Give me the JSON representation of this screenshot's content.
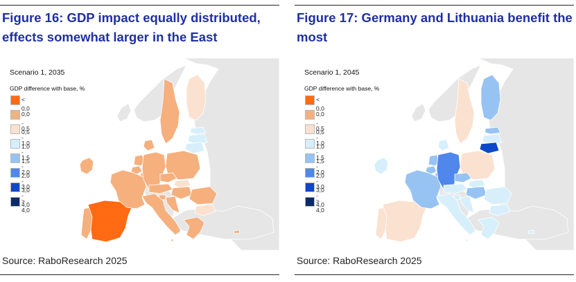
{
  "legend_bins": [
    {
      "label": "< 0,0",
      "color": "#ff6a13"
    },
    {
      "label": "0,0 - 0,5",
      "color": "#f5b07e"
    },
    {
      "label": "0,5 - 1,0",
      "color": "#fbe1cf"
    },
    {
      "label": "1,0 - 1,5",
      "color": "#d6effb"
    },
    {
      "label": "1,5 - 2,0",
      "color": "#97c3f3"
    },
    {
      "label": "2,0 - 3,0",
      "color": "#4f87ea"
    },
    {
      "label": "3,0 - 4,0",
      "color": "#0c48c8"
    },
    {
      "label": "> 4,0",
      "color": "#0b2a6b"
    }
  ],
  "non_eu_color": "#e6e6e6",
  "sea_color": "#ffffff",
  "figures": [
    {
      "title": "Figure 16: GDP impact equally distributed, effects somewhat larger in the East",
      "scenario": "Scenario 1, 2035",
      "legend_title": "GDP difference with base, %",
      "source": "Source: RaboResearch 2025",
      "country_bins": {
        "IE": 1,
        "PT": 1,
        "ES": 0,
        "FR": 1,
        "BE": 1,
        "NL": 1,
        "LU": 1,
        "DE": 1,
        "DK": 1,
        "SE": 1,
        "FI": 2,
        "EE": 3,
        "LV": 3,
        "LT": 3,
        "PL": 1,
        "CZ": 1,
        "SK": 2,
        "AT": 1,
        "HU": 1,
        "SI": 1,
        "HR": 1,
        "IT": 1,
        "RO": 1,
        "BG": 2,
        "GR": 1,
        "CY": 1,
        "MT": 1
      }
    },
    {
      "title": "Figure 17: Germany and Lithuania benefit the most",
      "scenario": "Scenario 1, 2045",
      "legend_title": "GDP difference with base, %",
      "source": "Source: RaboResearch 2025",
      "country_bins": {
        "IE": 3,
        "PT": 2,
        "ES": 2,
        "FR": 4,
        "BE": 4,
        "NL": 4,
        "LU": 4,
        "DE": 5,
        "DK": 3,
        "SE": 2,
        "FI": 4,
        "EE": 4,
        "LV": 3,
        "LT": 6,
        "PL": 2,
        "CZ": 4,
        "SK": 3,
        "AT": 3,
        "HU": 4,
        "SI": 3,
        "HR": 3,
        "IT": 3,
        "RO": 3,
        "BG": 3,
        "GR": 3,
        "CY": 3,
        "MT": 3
      }
    }
  ]
}
